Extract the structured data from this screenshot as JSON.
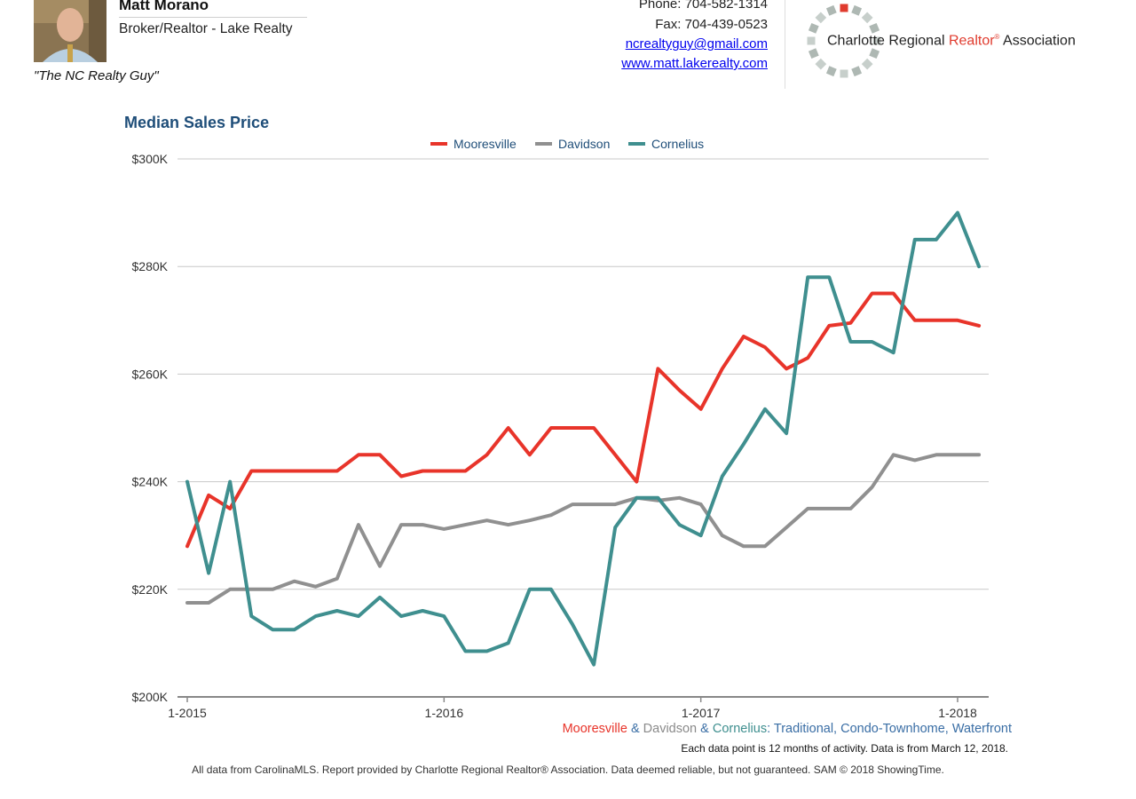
{
  "header": {
    "agent_name": "Matt Morano",
    "agent_title": "Broker/Realtor - Lake Realty",
    "tagline": "\"The NC Realty Guy\"",
    "phone": "Phone: 704-582-1314",
    "fax": "Fax: 704-439-0523",
    "email": "ncrealtyguy@gmail.com",
    "website": "www.matt.lakerealty.com",
    "association_name_part1": "Charlotte Regional ",
    "association_name_red": "Realtor",
    "association_mark": "®",
    "association_name_part2": " Association"
  },
  "subtitle": {
    "mooresville": "Mooresville",
    "amp1": " & ",
    "davidson": "Davidson",
    "amp2": " & ",
    "cornelius": "Cornelius",
    "suffix": ": Traditional, Condo-Townhome, Waterfront"
  },
  "note": "Each data point is 12 months of activity. Data is from March 12, 2018.",
  "footer": "All data from CarolinaMLS. Report provided by Charlotte Regional Realtor® Association. Data deemed reliable, but not guaranteed. SAM © 2018 ShowingTime.",
  "colors": {
    "mooresville": "#e8342a",
    "davidson": "#909090",
    "cornelius": "#3f8f8f",
    "subtitle_davidson": "#8a8a8a",
    "subtitle_cornelius": "#3f8f8f",
    "subtitle_suffix": "#3a6ea5",
    "gridline": "#c8c8c8",
    "axis": "#888888"
  },
  "chart_data": {
    "type": "line",
    "title": "Median Sales Price",
    "legend_position": "top-center",
    "grid": true,
    "ylim": [
      200000,
      300000
    ],
    "yticks": [
      200000,
      220000,
      240000,
      260000,
      280000,
      300000
    ],
    "ytick_labels": [
      "$200K",
      "$220K",
      "$240K",
      "$260K",
      "$280K",
      "$300K"
    ],
    "xticks": [
      "1-2015",
      "1-2016",
      "1-2017",
      "1-2018"
    ],
    "x": [
      "1-2015",
      "2-2015",
      "3-2015",
      "4-2015",
      "5-2015",
      "6-2015",
      "7-2015",
      "8-2015",
      "9-2015",
      "10-2015",
      "11-2015",
      "12-2015",
      "1-2016",
      "2-2016",
      "3-2016",
      "4-2016",
      "5-2016",
      "6-2016",
      "7-2016",
      "8-2016",
      "9-2016",
      "10-2016",
      "11-2016",
      "12-2016",
      "1-2017",
      "2-2017",
      "3-2017",
      "4-2017",
      "5-2017",
      "6-2017",
      "7-2017",
      "8-2017",
      "9-2017",
      "10-2017",
      "11-2017",
      "12-2017",
      "1-2018",
      "2-2018"
    ],
    "series": [
      {
        "name": "Mooresville",
        "values": [
          228000,
          237500,
          235000,
          242000,
          242000,
          242000,
          242000,
          242000,
          245000,
          245000,
          241000,
          242000,
          242000,
          242000,
          245000,
          250000,
          245000,
          250000,
          250000,
          250000,
          245000,
          240000,
          261000,
          257000,
          253500,
          261000,
          267000,
          265000,
          261000,
          263000,
          269000,
          269500,
          275000,
          275000,
          270000,
          270000,
          270000,
          269000
        ]
      },
      {
        "name": "Davidson",
        "values": [
          217500,
          217500,
          220000,
          220000,
          220000,
          221500,
          220500,
          222000,
          232000,
          224300,
          232000,
          232000,
          231200,
          232000,
          232800,
          232000,
          232800,
          233800,
          235800,
          235800,
          235800,
          237000,
          236500,
          237000,
          235800,
          230000,
          228000,
          228000,
          231500,
          235000,
          235000,
          235000,
          239000,
          245000,
          244000,
          245000,
          245000,
          245000
        ]
      },
      {
        "name": "Cornelius",
        "values": [
          240000,
          223000,
          240000,
          215000,
          212500,
          212500,
          215000,
          216000,
          215000,
          218500,
          215000,
          216000,
          215000,
          208500,
          208500,
          210000,
          220000,
          220000,
          213500,
          206000,
          231500,
          237000,
          237000,
          232000,
          230000,
          241000,
          247000,
          253500,
          249000,
          278000,
          278000,
          266000,
          266000,
          264000,
          285000,
          285000,
          290000,
          280000
        ]
      }
    ]
  }
}
